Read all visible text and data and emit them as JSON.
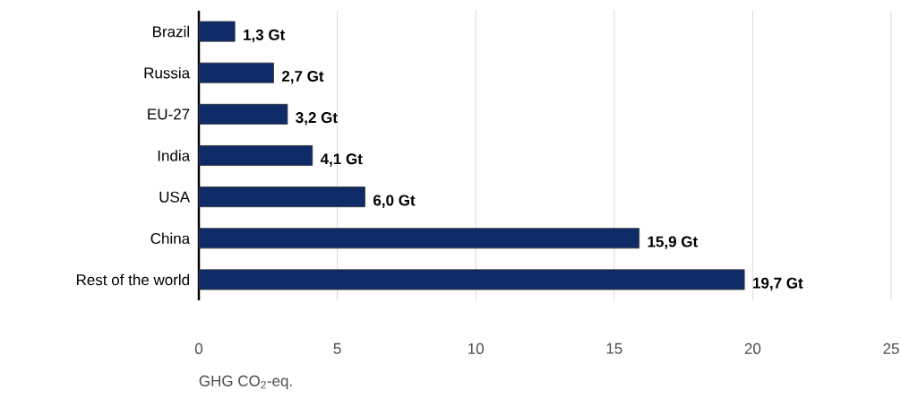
{
  "chart_data": {
    "type": "bar",
    "orientation": "horizontal",
    "categories": [
      "Brazil",
      "Russia",
      "EU-27",
      "India",
      "USA",
      "China",
      "Rest of the world"
    ],
    "values": [
      1.3,
      2.7,
      3.2,
      4.1,
      6.0,
      15.9,
      19.7
    ],
    "value_labels": [
      "1,3 Gt",
      "2,7 Gt",
      "3,2 Gt",
      "4,1 Gt",
      "6,0 Gt",
      "15,9 Gt",
      "19,7 Gt"
    ],
    "color": "#0e2a67",
    "xlabel": "GHG CO$_{2}$-eq.",
    "xlim": [
      0,
      25
    ],
    "xticks": [
      0,
      5,
      10,
      15,
      20,
      25
    ],
    "grid": "x"
  }
}
